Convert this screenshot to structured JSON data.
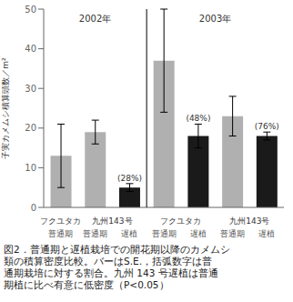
{
  "chart_data": {
    "type": "bar",
    "categories": [
      "普通期",
      "普通期",
      "遅植",
      "普通期",
      "遅植",
      "普通期",
      "遅植"
    ],
    "values": [
      13,
      19,
      5,
      37,
      18,
      23,
      18
    ],
    "errors": [
      8,
      3,
      1,
      13,
      3,
      5,
      1
    ],
    "colors": [
      "#b0b0b0",
      "#b0b0b0",
      "#1a1a1a",
      "#b0b0b0",
      "#1a1a1a",
      "#b0b0b0",
      "#1a1a1a"
    ],
    "annotations": [
      null,
      null,
      "(28%)",
      null,
      "(48%)",
      null,
      "(76%)"
    ],
    "cultivars": [
      {
        "label": "フクユタカ",
        "span": 1
      },
      {
        "label": "九州143号",
        "span": 2
      },
      {
        "label": "フクユタカ",
        "span": 2
      },
      {
        "label": "九州143号",
        "span": 2
      }
    ],
    "years": [
      {
        "label": "2002年",
        "span": 3
      },
      {
        "label": "2003年",
        "span": 4
      }
    ],
    "ylabel": "子実カメムシ積算頭数／m²",
    "ylim": [
      0,
      50
    ],
    "yticks": [
      0,
      10,
      20,
      30,
      40,
      50
    ],
    "grid": false,
    "caption": [
      "図2．普通期と遅植栽培での開花期以降のカメムシ",
      "類の積算密度比較。バーはS.E.，括弧数字は普",
      "通期栽培に対する割合。九州 143 号遅植は普通",
      "期植に比べ有意に低密度（P<0.05）"
    ]
  }
}
